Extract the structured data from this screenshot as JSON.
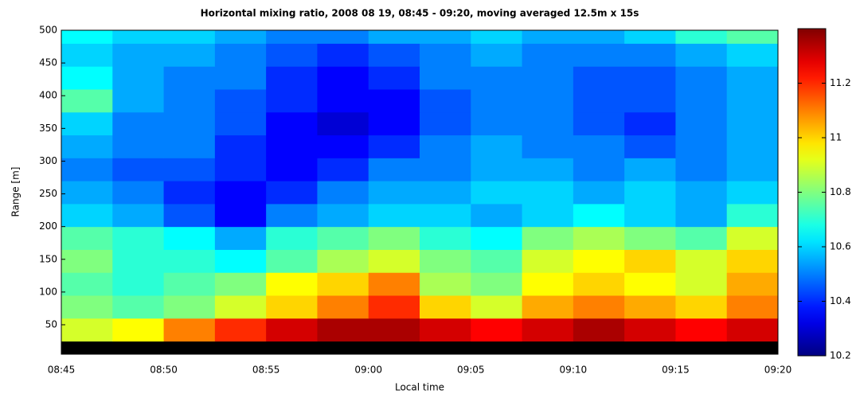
{
  "chart_data": {
    "type": "heatmap",
    "title": "Horizontal mixing ratio, 2008 08 19, 08:45 - 09:20, moving averaged 12.5m x 15s",
    "x_label": "Local time",
    "y_label": "Range [m]",
    "colormap": "jet",
    "missing_color": "#000000",
    "xlim": [
      525,
      560
    ],
    "xticks": [
      {
        "value": 525,
        "label": "08:45"
      },
      {
        "value": 530,
        "label": "08:50"
      },
      {
        "value": 535,
        "label": "08:55"
      },
      {
        "value": 540,
        "label": "09:00"
      },
      {
        "value": 545,
        "label": "09:05"
      },
      {
        "value": 550,
        "label": "09:10"
      },
      {
        "value": 555,
        "label": "09:15"
      },
      {
        "value": 560,
        "label": "09:20"
      }
    ],
    "ylim": [
      5,
      500
    ],
    "yticks": [
      50,
      100,
      150,
      200,
      250,
      300,
      350,
      400,
      450,
      500
    ],
    "xbins": [
      525,
      527.5,
      530,
      532.5,
      535,
      537.5,
      540,
      542.5,
      545,
      547.5,
      550,
      552.5,
      555,
      557.5,
      560
    ],
    "ybins": [
      5,
      25,
      60,
      95,
      130,
      165,
      200,
      235,
      270,
      305,
      340,
      375,
      410,
      445,
      480,
      500
    ],
    "values": [
      [
        null,
        null,
        null,
        null,
        null,
        null,
        null,
        null,
        null,
        null,
        null,
        null,
        null,
        null
      ],
      [
        10.9,
        10.95,
        11.1,
        11.2,
        11.3,
        11.35,
        11.35,
        11.3,
        11.25,
        11.3,
        11.35,
        11.3,
        11.25,
        11.3
      ],
      [
        10.8,
        10.75,
        10.8,
        10.9,
        11.0,
        11.1,
        11.2,
        11.0,
        10.9,
        11.05,
        11.1,
        11.05,
        11.0,
        11.1
      ],
      [
        10.75,
        10.7,
        10.75,
        10.8,
        10.95,
        11.0,
        11.1,
        10.85,
        10.8,
        10.95,
        11.0,
        10.95,
        10.9,
        11.05
      ],
      [
        10.8,
        10.7,
        10.7,
        10.65,
        10.75,
        10.85,
        10.9,
        10.8,
        10.75,
        10.9,
        10.95,
        11.0,
        10.9,
        11.0
      ],
      [
        10.75,
        10.7,
        10.65,
        10.55,
        10.7,
        10.75,
        10.8,
        10.7,
        10.65,
        10.8,
        10.85,
        10.8,
        10.75,
        10.9
      ],
      [
        10.6,
        10.55,
        10.45,
        10.35,
        10.5,
        10.55,
        10.6,
        10.6,
        10.55,
        10.6,
        10.65,
        10.6,
        10.55,
        10.7
      ],
      [
        10.55,
        10.5,
        10.4,
        10.35,
        10.4,
        10.5,
        10.55,
        10.55,
        10.6,
        10.6,
        10.55,
        10.6,
        10.55,
        10.6
      ],
      [
        10.5,
        10.45,
        10.45,
        10.4,
        10.35,
        10.4,
        10.5,
        10.5,
        10.55,
        10.55,
        10.5,
        10.55,
        10.5,
        10.55
      ],
      [
        10.55,
        10.5,
        10.5,
        10.4,
        10.35,
        10.35,
        10.4,
        10.5,
        10.55,
        10.5,
        10.5,
        10.45,
        10.5,
        10.55
      ],
      [
        10.6,
        10.5,
        10.5,
        10.45,
        10.35,
        10.3,
        10.35,
        10.45,
        10.5,
        10.5,
        10.45,
        10.4,
        10.5,
        10.55
      ],
      [
        10.75,
        10.55,
        10.5,
        10.45,
        10.4,
        10.35,
        10.35,
        10.45,
        10.5,
        10.5,
        10.45,
        10.45,
        10.5,
        10.55
      ],
      [
        10.65,
        10.55,
        10.5,
        10.5,
        10.4,
        10.35,
        10.4,
        10.5,
        10.5,
        10.5,
        10.45,
        10.45,
        10.5,
        10.55
      ],
      [
        10.6,
        10.55,
        10.55,
        10.5,
        10.45,
        10.4,
        10.45,
        10.5,
        10.55,
        10.5,
        10.5,
        10.5,
        10.55,
        10.6
      ],
      [
        10.65,
        10.6,
        10.6,
        10.55,
        10.5,
        10.5,
        10.55,
        10.55,
        10.6,
        10.55,
        10.55,
        10.6,
        10.7,
        10.75
      ]
    ],
    "colorbar": {
      "lim": [
        10.2,
        11.4
      ],
      "ticks": [
        10.2,
        10.4,
        10.6,
        10.8,
        11,
        11.2
      ]
    }
  }
}
